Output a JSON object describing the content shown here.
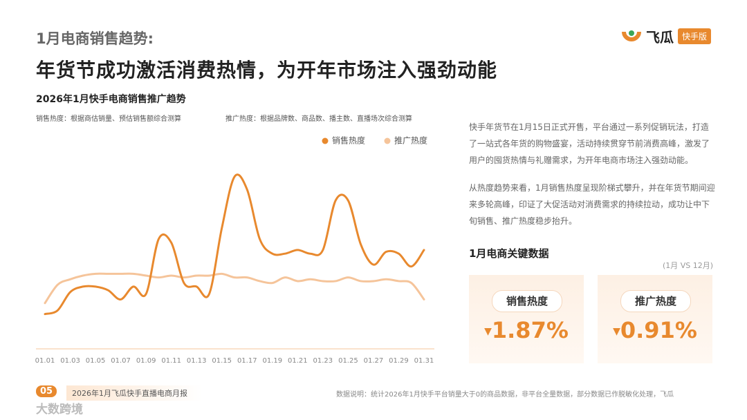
{
  "header": {
    "section_title": "1月电商销售趋势:",
    "title": "年货节成功激活消费热情，为开年市场注入强劲动能"
  },
  "logo": {
    "name": "飞瓜",
    "badge": "快手版"
  },
  "chart_data": {
    "type": "line",
    "title": "2026年1月快手电商销售推广趋势",
    "notes": [
      "销售热度：根据商估销量、预估销售额综合测算",
      "推广热度：根据品牌数、商品数、播主数、直播场次综合测算"
    ],
    "categories": [
      "01.01",
      null,
      "01.03",
      null,
      "01.05",
      null,
      "01.07",
      null,
      "01.09",
      null,
      "01.11",
      null,
      "01.13",
      null,
      "01.15",
      null,
      "01.17",
      null,
      "01.19",
      null,
      "01.21",
      null,
      "01.23",
      null,
      "01.25",
      null,
      "01.27",
      null,
      "01.29",
      null,
      "01.31"
    ],
    "series": [
      {
        "name": "销售热度",
        "color": "#e8892e",
        "values": [
          19,
          21,
          31,
          34,
          34,
          32,
          27,
          34,
          30,
          60,
          58,
          36,
          34,
          30,
          66,
          94,
          87,
          60,
          52,
          52,
          54,
          52,
          54,
          81,
          81,
          57,
          46,
          53,
          52,
          45,
          54
        ]
      },
      {
        "name": "推广热度",
        "color": "#f5c49a",
        "values": [
          25,
          35,
          38,
          40,
          41,
          41,
          41,
          41,
          40,
          39,
          40,
          39,
          40,
          40,
          41,
          39,
          39,
          37,
          36,
          39,
          37,
          38,
          37,
          37,
          39,
          37,
          37,
          38,
          37,
          36,
          27
        ]
      }
    ],
    "ylim": [
      0,
      100
    ],
    "legend": "top-right"
  },
  "description": [
    "快手年货节在1月15日正式开售，平台通过一系列促销玩法，打造了一站式各年货的购物盛宴，活动持续贯穿节前消费高峰，激发了用户的囤货热情与礼赠需求，为开年电商市场注入强劲动能。",
    "从热度趋势来看，1月销售热度呈现阶梯式攀升，并在年货节期间迎来多轮高峰，印证了大促活动对消费需求的持续拉动，成功让中下旬销售、推广热度稳步抬升。"
  ],
  "key_data": {
    "title": "1月电商关键数据",
    "note": "(1月 VS 12月)",
    "cards": [
      {
        "label": "销售热度",
        "value": "1.87%"
      },
      {
        "label": "推广热度",
        "value": "0.91%"
      }
    ]
  },
  "footer": {
    "page": "05",
    "report": "2026年1月飞瓜快手直播电商月报",
    "note": "数据说明：统计2026年1月快手平台销量大于0的商品数据，非平台全量数据，部分数据已作脱敏化处理，飞瓜"
  },
  "watermark": "大数跨境"
}
